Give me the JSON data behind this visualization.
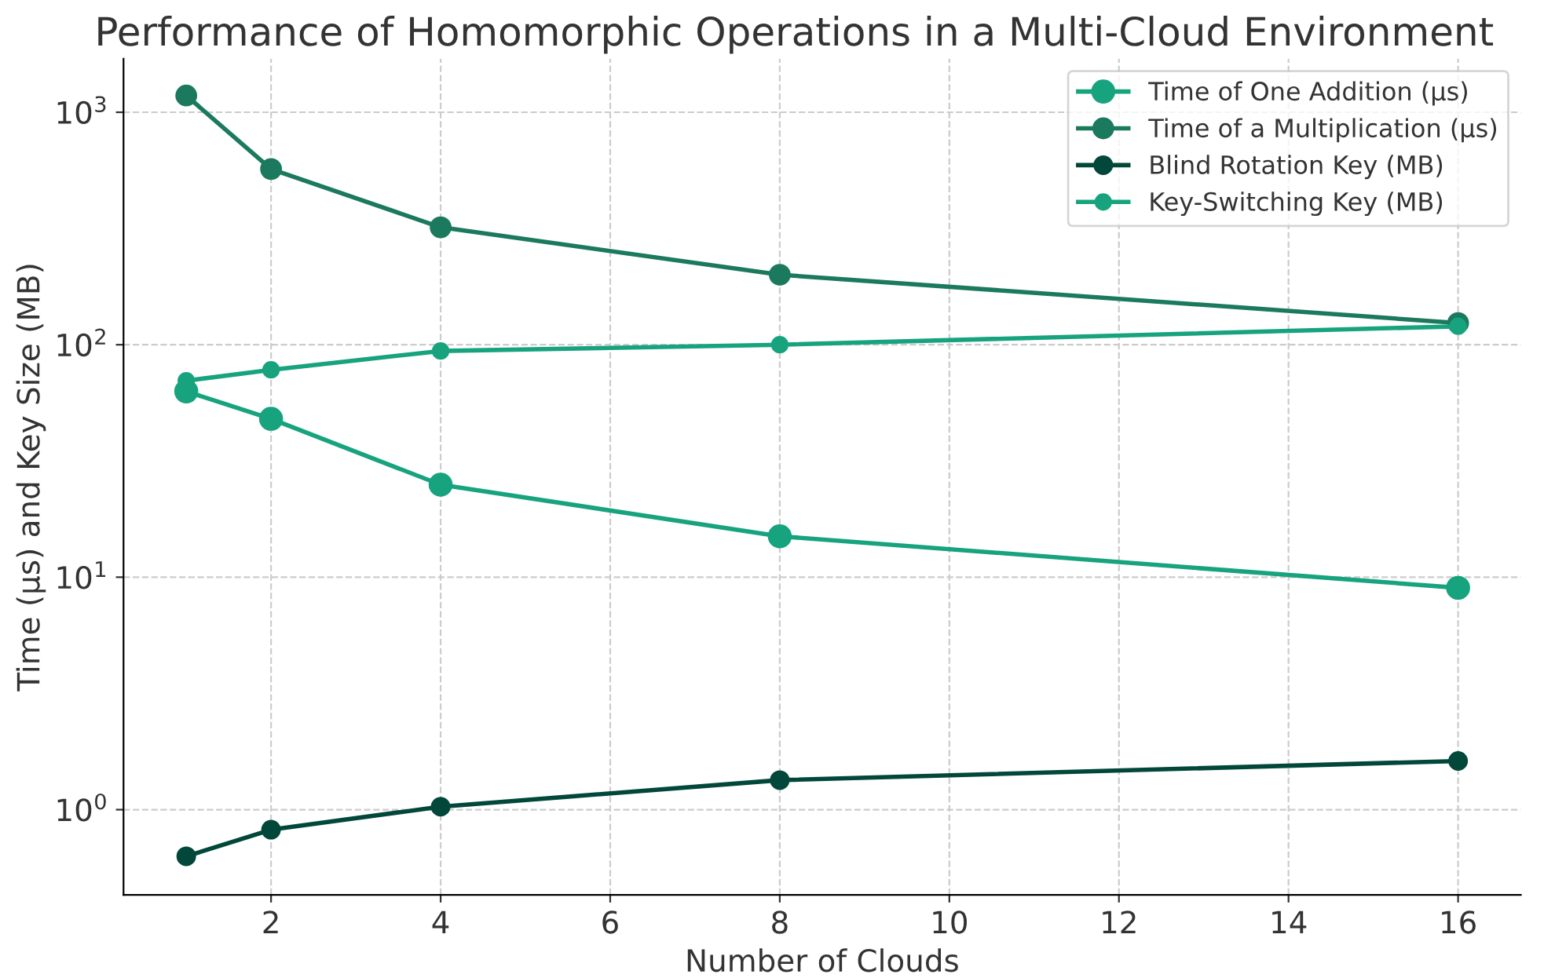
{
  "chart_data": {
    "type": "line",
    "title": "Performance of Homomorphic Operations in a Multi-Cloud Environment",
    "xlabel": "Number of Clouds",
    "ylabel": "Time (µs) and Key Size (MB)",
    "x": [
      1,
      2,
      4,
      8,
      16
    ],
    "series": [
      {
        "name": "Time of One Addition (µs)",
        "color": "#17a37e",
        "values": [
          63,
          48,
          25,
          15,
          9
        ]
      },
      {
        "name": "Time of a Multiplication (µs)",
        "color": "#1b7a5e",
        "values": [
          1180,
          570,
          320,
          200,
          124
        ]
      },
      {
        "name": "Blind Rotation Key (MB)",
        "color": "#02483a",
        "values": [
          0.63,
          0.82,
          1.03,
          1.34,
          1.62
        ]
      },
      {
        "name": "Key-Switching Key (MB)",
        "color": "#17a37e",
        "values": [
          70,
          78,
          94,
          100,
          120
        ]
      }
    ],
    "log": "y",
    "xlim": [
      0.26,
      16.74
    ],
    "ylim": [
      0.43,
      1700
    ],
    "xticks": [
      2,
      4,
      6,
      8,
      10,
      12,
      14,
      16
    ],
    "yticks": [
      {
        "value": 1,
        "label": "10$^{0}$"
      },
      {
        "value": 10,
        "label": "10$^{1}$"
      },
      {
        "value": 100,
        "label": "10$^{2}$"
      },
      {
        "value": 1000,
        "label": "10$^{3}$"
      }
    ],
    "grid": true,
    "legend": "top right",
    "marker": "circle",
    "line_style": "solid"
  }
}
